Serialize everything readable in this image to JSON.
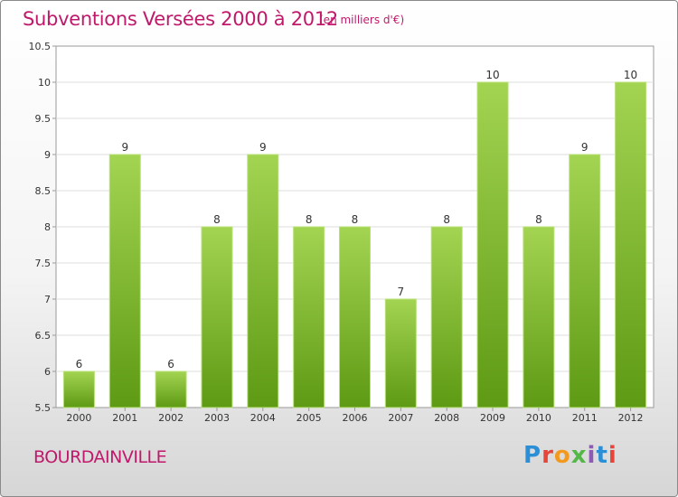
{
  "header": {
    "title": "Subventions Versées 2000 à 2012",
    "subtitle": "(en milliers d'€)"
  },
  "commune": "BOURDAINVILLE",
  "logo": {
    "text": "Proxiti",
    "colors": [
      "#2a8fd6",
      "#e6453a",
      "#f39a1e",
      "#54b848",
      "#8c5bb6"
    ]
  },
  "chart_data": {
    "type": "bar",
    "title": "Subventions Versées 2000 à 2012",
    "subtitle": "(en milliers d'€)",
    "categories": [
      "2000",
      "2001",
      "2002",
      "2003",
      "2004",
      "2005",
      "2006",
      "2007",
      "2008",
      "2009",
      "2010",
      "2011",
      "2012"
    ],
    "values": [
      6,
      9,
      6,
      8,
      9,
      8,
      8,
      7,
      8,
      10,
      8,
      9,
      10
    ],
    "data_labels": [
      "6",
      "9",
      "6",
      "8",
      "9",
      "8",
      "8",
      "7",
      "8",
      "10",
      "8",
      "9",
      "10"
    ],
    "ylim": [
      5.5,
      10.5
    ],
    "yticks": [
      5.5,
      6,
      6.5,
      7,
      7.5,
      8,
      8.5,
      9,
      9.5,
      10,
      10.5
    ],
    "ytick_labels": [
      "5.5",
      "6",
      "6.5",
      "7",
      "7.5",
      "8",
      "8.5",
      "9",
      "9.5",
      "10",
      "10.5"
    ],
    "grid": true,
    "legend": false,
    "bar_color_top": "#a3d452",
    "bar_color_bottom": "#5e9a14"
  }
}
